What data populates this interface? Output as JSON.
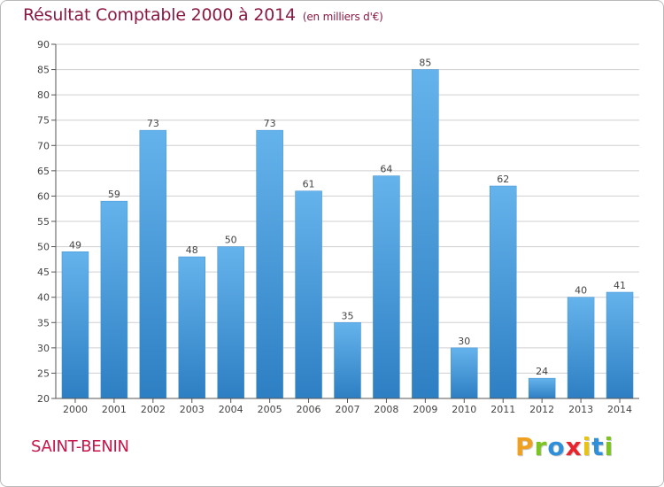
{
  "header": {
    "title": "Résultat Comptable 2000 à 2014",
    "subtitle": "(en milliers d'€)"
  },
  "footer": {
    "commune": "SAINT-BENIN"
  },
  "logo": {
    "letters": [
      "P",
      "r",
      "o",
      "x",
      "i",
      "t",
      "i"
    ],
    "colors": [
      "#f0a020",
      "#7cc41e",
      "#2f8fd8",
      "#e8252c",
      "#e8c410",
      "#2f8fd8",
      "#7cc41e"
    ]
  },
  "colors": {
    "bar_top": "#65b3ec",
    "bar_bottom": "#2d7fc3",
    "grid": "#cfcfcf",
    "axis": "#555555"
  },
  "chart_data": {
    "type": "bar",
    "title": "Résultat Comptable 2000 à 2014",
    "subtitle": "(en milliers d'€)",
    "categories": [
      "2000",
      "2001",
      "2002",
      "2003",
      "2004",
      "2005",
      "2006",
      "2007",
      "2008",
      "2009",
      "2010",
      "2011",
      "2012",
      "2013",
      "2014"
    ],
    "values": [
      49,
      59,
      73,
      48,
      50,
      73,
      61,
      35,
      64,
      85,
      30,
      62,
      24,
      40,
      41
    ],
    "xlabel": "",
    "ylabel": "",
    "ylim": [
      20,
      90
    ],
    "yticks": [
      20,
      25,
      30,
      35,
      40,
      45,
      50,
      55,
      60,
      65,
      70,
      75,
      80,
      85,
      90
    ],
    "grid": true,
    "data_labels": true
  }
}
